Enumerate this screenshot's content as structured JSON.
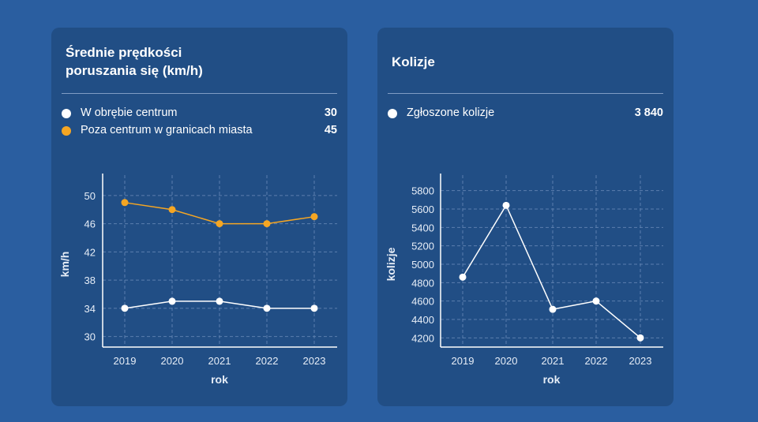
{
  "colors": {
    "background": "#2a5ea0",
    "card": "#214e85",
    "series_white": "#ffffff",
    "series_orange": "#f5a623",
    "grid": "#5c7fae"
  },
  "cards": [
    {
      "title_line1": "Średnie prędkości",
      "title_line2": "poruszania się (km/h)",
      "legend": [
        {
          "label": "W obrębie centrum",
          "value": "30",
          "color": "#ffffff"
        },
        {
          "label": "Poza centrum w granicach miasta",
          "value": "45",
          "color": "#f5a623"
        }
      ]
    },
    {
      "title_line1": "Kolizje",
      "legend": [
        {
          "label": "Zgłoszone kolizje",
          "value": "3 840",
          "color": "#ffffff"
        }
      ]
    }
  ],
  "chart_data": [
    {
      "type": "line",
      "title": "Średnie prędkości poruszania się (km/h)",
      "xlabel": "rok",
      "ylabel": "km/h",
      "x": [
        "2019",
        "2020",
        "2021",
        "2022",
        "2023"
      ],
      "yticks": [
        "30",
        "34",
        "38",
        "42",
        "46",
        "50"
      ],
      "ylim": [
        28.5,
        52
      ],
      "grid": true,
      "series": [
        {
          "name": "W obrębie centrum",
          "color": "#ffffff",
          "values": [
            34,
            35,
            35,
            34,
            34
          ]
        },
        {
          "name": "Poza centrum w granicach miasta",
          "color": "#f5a623",
          "values": [
            49,
            48,
            46,
            46,
            47
          ]
        }
      ]
    },
    {
      "type": "line",
      "title": "Kolizje",
      "xlabel": "rok",
      "ylabel": "kolizje",
      "x": [
        "2019",
        "2020",
        "2021",
        "2022",
        "2023"
      ],
      "yticks": [
        "4200",
        "4400",
        "4600",
        "4800",
        "5000",
        "5200",
        "5400",
        "5600",
        "5800"
      ],
      "ylim": [
        4100,
        5900
      ],
      "grid": true,
      "series": [
        {
          "name": "Zgłoszone kolizje",
          "color": "#ffffff",
          "values": [
            4860,
            5640,
            4510,
            4600,
            4200
          ]
        }
      ]
    }
  ]
}
